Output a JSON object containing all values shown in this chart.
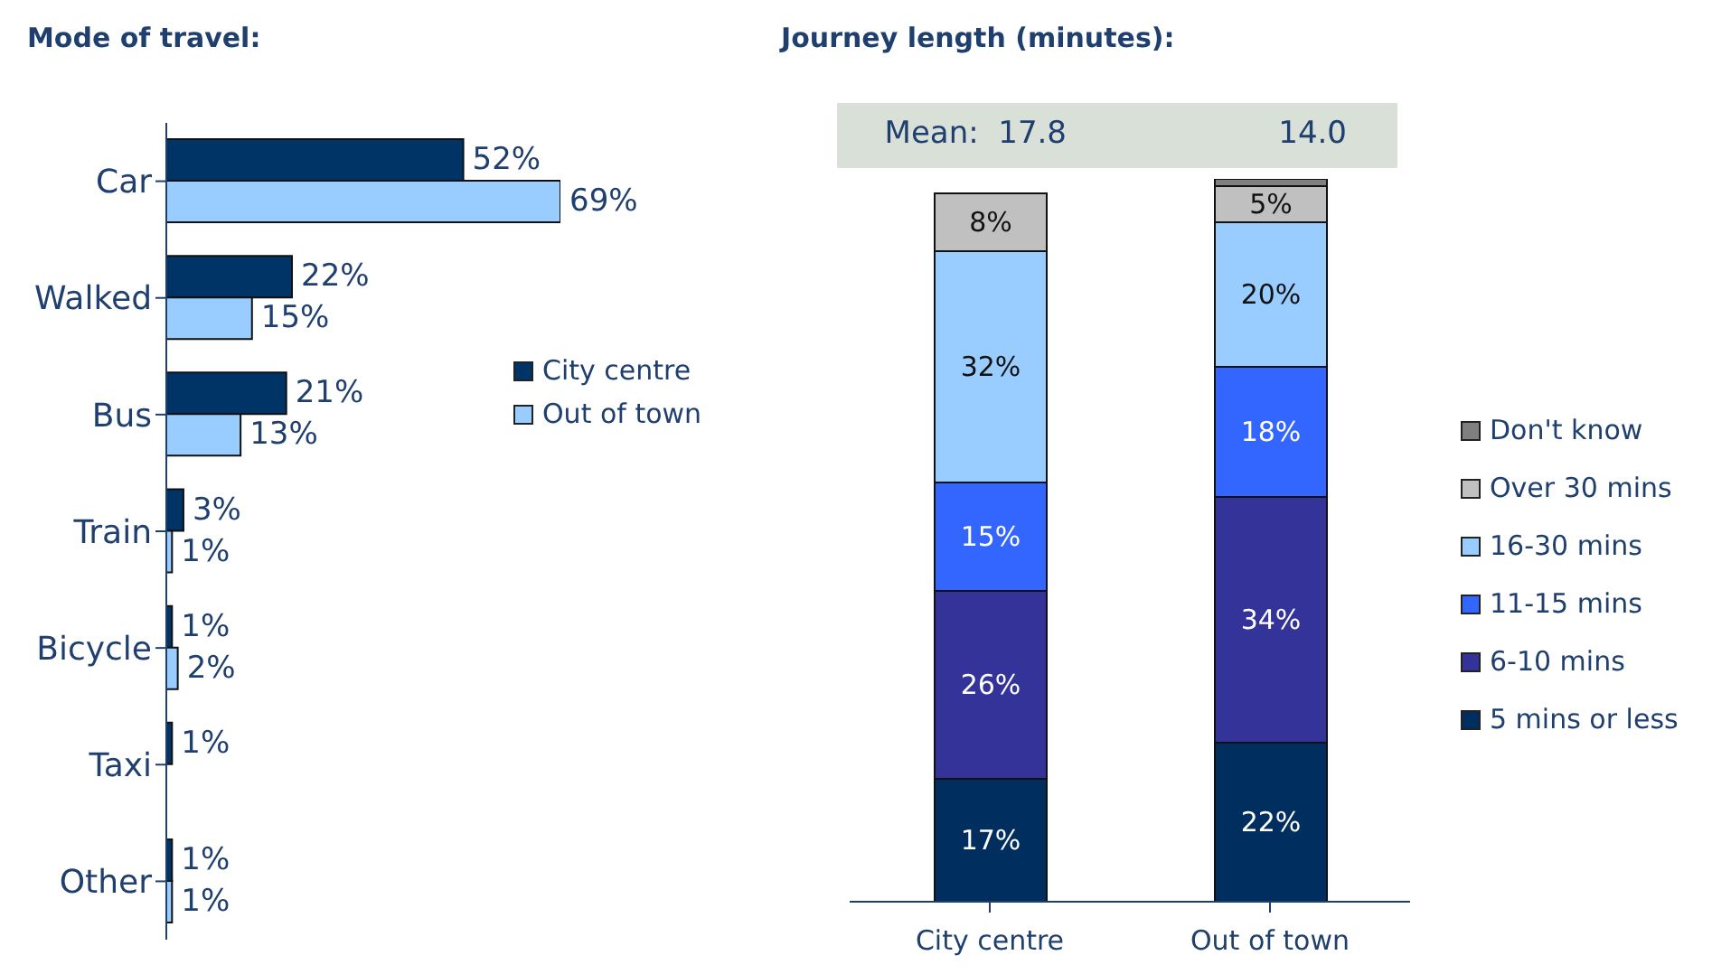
{
  "chart_data": [
    {
      "type": "bar",
      "title": "Mode of travel:",
      "orientation": "horizontal",
      "categories": [
        "Car",
        "Walked",
        "Bus",
        "Train",
        "Bicycle",
        "Taxi",
        "Other"
      ],
      "series": [
        {
          "name": "City centre",
          "color": "#003366",
          "values": [
            52,
            22,
            21,
            3,
            1,
            1,
            1
          ],
          "value_labels": [
            "52%",
            "22%",
            "21%",
            "3%",
            "1%",
            "1%",
            "1%"
          ]
        },
        {
          "name": "Out of town",
          "color": "#99ccff",
          "values": [
            69,
            15,
            13,
            1,
            2,
            null,
            1
          ],
          "value_labels": [
            "69%",
            "15%",
            "13%",
            "1%",
            "2%",
            null,
            "1%"
          ]
        }
      ],
      "legend": "right"
    },
    {
      "type": "bar",
      "title": "Journey length (minutes):",
      "stacked": true,
      "categories": [
        "City centre",
        "Out of town"
      ],
      "series": [
        {
          "name": "5 mins or less",
          "color": "#002f5f",
          "values": [
            17,
            22
          ],
          "value_labels": [
            "17%",
            "22%"
          ]
        },
        {
          "name": "6-10 mins",
          "color": "#333399",
          "values": [
            26,
            34
          ],
          "value_labels": [
            "26%",
            "34%"
          ]
        },
        {
          "name": "11-15 mins",
          "color": "#3366ff",
          "values": [
            15,
            18
          ],
          "value_labels": [
            "15%",
            "18%"
          ]
        },
        {
          "name": "16-30 mins",
          "color": "#99ccff",
          "values": [
            32,
            20
          ],
          "value_labels": [
            "32%",
            "20%"
          ]
        },
        {
          "name": "Over 30 mins",
          "color": "#c0c0c0",
          "values": [
            8,
            5
          ],
          "value_labels": [
            "8%",
            "5%"
          ]
        },
        {
          "name": "Don't know",
          "color": "#808080",
          "values": [
            null,
            1
          ],
          "value_labels": [
            null,
            null
          ]
        }
      ],
      "annotations": [
        "Mean:  17.8",
        "14.0"
      ],
      "legend": "right"
    }
  ]
}
